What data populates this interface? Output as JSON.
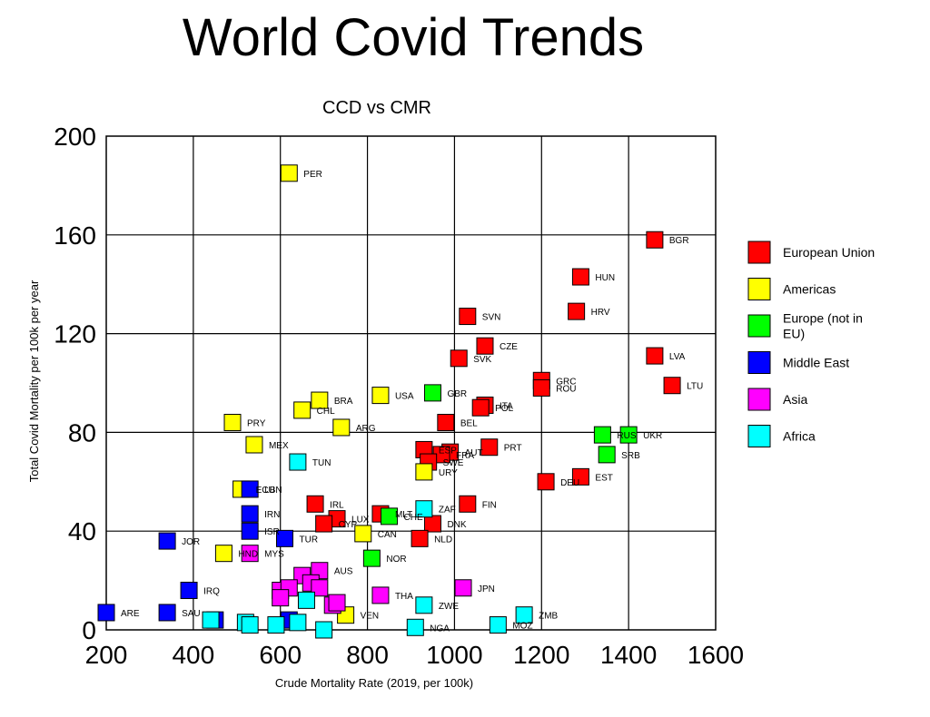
{
  "page_title": "World Covid Trends",
  "chart_data": {
    "type": "scatter",
    "title": "CCD vs CMR",
    "xlabel": "Crude Mortality Rate (2019, per 100k)",
    "ylabel": "Total Covid Mortality per 100k per year",
    "xlim": [
      200,
      1600
    ],
    "ylim": [
      0,
      200
    ],
    "xticks": [
      "200",
      "400",
      "600",
      "800",
      "1000",
      "1200",
      "1400",
      "1600"
    ],
    "yticks": [
      "0",
      "40",
      "80",
      "120",
      "160",
      "200"
    ],
    "grid": true,
    "legend_position": "right",
    "series": [
      {
        "name": "European Union",
        "color": "#ff0000",
        "points": [
          {
            "label": "BGR",
            "x": 1460,
            "y": 158
          },
          {
            "label": "HUN",
            "x": 1290,
            "y": 143
          },
          {
            "label": "HRV",
            "x": 1280,
            "y": 129
          },
          {
            "label": "SVN",
            "x": 1030,
            "y": 127
          },
          {
            "label": "CZE",
            "x": 1070,
            "y": 115
          },
          {
            "label": "SVK",
            "x": 1010,
            "y": 110
          },
          {
            "label": "LVA",
            "x": 1460,
            "y": 111
          },
          {
            "label": "LTU",
            "x": 1500,
            "y": 99
          },
          {
            "label": "GRC",
            "x": 1200,
            "y": 101
          },
          {
            "label": "ROU",
            "x": 1200,
            "y": 98
          },
          {
            "label": "ITA",
            "x": 1070,
            "y": 91
          },
          {
            "label": "POL",
            "x": 1060,
            "y": 90
          },
          {
            "label": "BEL",
            "x": 980,
            "y": 84
          },
          {
            "label": "PRT",
            "x": 1080,
            "y": 74
          },
          {
            "label": "ESP",
            "x": 930,
            "y": 73
          },
          {
            "label": "AUT",
            "x": 990,
            "y": 72
          },
          {
            "label": "FRA",
            "x": 970,
            "y": 71
          },
          {
            "label": "SWE",
            "x": 940,
            "y": 68
          },
          {
            "label": "EST",
            "x": 1290,
            "y": 62
          },
          {
            "label": "DEU",
            "x": 1210,
            "y": 60
          },
          {
            "label": "FIN",
            "x": 1030,
            "y": 51
          },
          {
            "label": "IRL",
            "x": 680,
            "y": 51
          },
          {
            "label": "MLT",
            "x": 830,
            "y": 47
          },
          {
            "label": "LUX",
            "x": 730,
            "y": 45
          },
          {
            "label": "CYP",
            "x": 700,
            "y": 43
          },
          {
            "label": "DNK",
            "x": 950,
            "y": 43
          },
          {
            "label": "NLD",
            "x": 920,
            "y": 37
          }
        ]
      },
      {
        "name": "Americas",
        "color": "#ffff00",
        "points": [
          {
            "label": "PER",
            "x": 620,
            "y": 185
          },
          {
            "label": "USA",
            "x": 830,
            "y": 95
          },
          {
            "label": "BRA",
            "x": 690,
            "y": 93
          },
          {
            "label": "CHL",
            "x": 650,
            "y": 89
          },
          {
            "label": "PRY",
            "x": 490,
            "y": 84
          },
          {
            "label": "ARG",
            "x": 740,
            "y": 82
          },
          {
            "label": "MEX",
            "x": 540,
            "y": 75
          },
          {
            "label": "URY",
            "x": 930,
            "y": 64
          },
          {
            "label": "ECU",
            "x": 510,
            "y": 57
          },
          {
            "label": "CAN",
            "x": 790,
            "y": 39
          },
          {
            "label": "HND",
            "x": 470,
            "y": 31
          },
          {
            "label": "VEN",
            "x": 750,
            "y": 6
          }
        ]
      },
      {
        "name": "Europe (not in EU)",
        "color": "#00ff00",
        "points": [
          {
            "label": "GBR",
            "x": 950,
            "y": 96
          },
          {
            "label": "RUS",
            "x": 1340,
            "y": 79
          },
          {
            "label": "UKR",
            "x": 1400,
            "y": 79
          },
          {
            "label": "SRB",
            "x": 1350,
            "y": 71
          },
          {
            "label": "CHE",
            "x": 850,
            "y": 46
          },
          {
            "label": "NOR",
            "x": 810,
            "y": 29
          }
        ]
      },
      {
        "name": "Middle East",
        "color": "#0000ff",
        "points": [
          {
            "label": "LBN",
            "x": 530,
            "y": 57
          },
          {
            "label": "IRN",
            "x": 530,
            "y": 47
          },
          {
            "label": "ISR",
            "x": 530,
            "y": 40
          },
          {
            "label": "TUR",
            "x": 610,
            "y": 37
          },
          {
            "label": "JOR",
            "x": 340,
            "y": 36
          },
          {
            "label": "IRQ",
            "x": 390,
            "y": 16
          },
          {
            "label": "ARE",
            "x": 200,
            "y": 7
          },
          {
            "label": "SAU",
            "x": 340,
            "y": 7
          },
          {
            "label": "",
            "x": 450,
            "y": 4
          },
          {
            "label": "",
            "x": 620,
            "y": 4
          }
        ]
      },
      {
        "name": "Asia",
        "color": "#ff00ff",
        "points": [
          {
            "label": "AUS",
            "x": 690,
            "y": 24
          },
          {
            "label": "MYS",
            "x": 530,
            "y": 31
          },
          {
            "label": "JPN",
            "x": 1020,
            "y": 17
          },
          {
            "label": "THA",
            "x": 830,
            "y": 14
          },
          {
            "label": "",
            "x": 650,
            "y": 22
          },
          {
            "label": "",
            "x": 670,
            "y": 19
          },
          {
            "label": "",
            "x": 690,
            "y": 17
          },
          {
            "label": "",
            "x": 600,
            "y": 16
          },
          {
            "label": "",
            "x": 620,
            "y": 17
          },
          {
            "label": "",
            "x": 600,
            "y": 13
          },
          {
            "label": "",
            "x": 720,
            "y": 10
          },
          {
            "label": "",
            "x": 730,
            "y": 11
          }
        ]
      },
      {
        "name": "Africa",
        "color": "#00ffff",
        "points": [
          {
            "label": "TUN",
            "x": 640,
            "y": 68
          },
          {
            "label": "ZAF",
            "x": 930,
            "y": 49
          },
          {
            "label": "ZWE",
            "x": 930,
            "y": 10
          },
          {
            "label": "MOZ",
            "x": 1100,
            "y": 2
          },
          {
            "label": "ZMB",
            "x": 1160,
            "y": 6
          },
          {
            "label": "NGA",
            "x": 910,
            "y": 1
          },
          {
            "label": "",
            "x": 440,
            "y": 4
          },
          {
            "label": "",
            "x": 520,
            "y": 3
          },
          {
            "label": "",
            "x": 530,
            "y": 2
          },
          {
            "label": "",
            "x": 590,
            "y": 2
          },
          {
            "label": "",
            "x": 640,
            "y": 3
          },
          {
            "label": "",
            "x": 660,
            "y": 12
          },
          {
            "label": "",
            "x": 700,
            "y": 0
          }
        ]
      }
    ]
  }
}
